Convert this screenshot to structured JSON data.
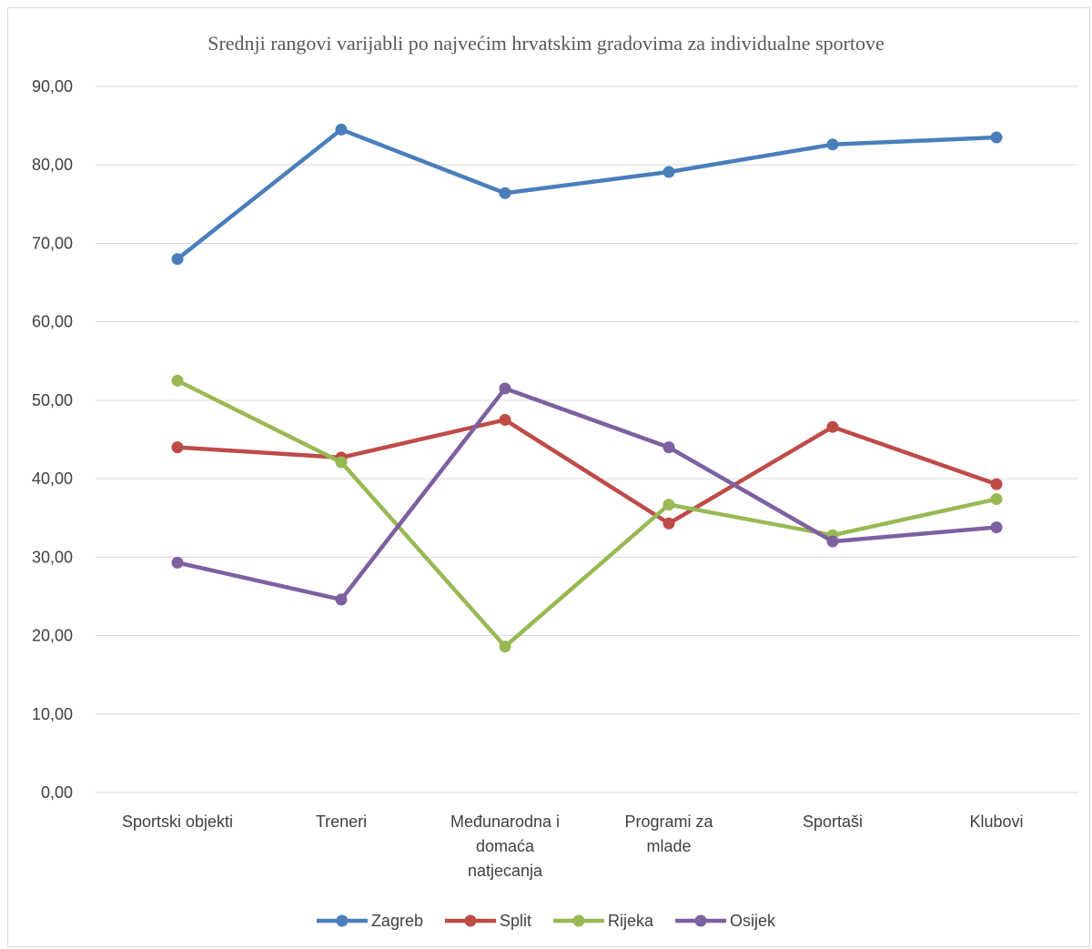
{
  "chart_data": {
    "type": "line",
    "title": "Srednji rangovi varijabli po najvećim hrvatskim gradovima za individualne sportove",
    "categories": [
      [
        "Sportski objekti"
      ],
      [
        "Treneri"
      ],
      [
        "Međunarodna i",
        "domaća",
        "natjecanja"
      ],
      [
        "Programi za",
        "mlade"
      ],
      [
        "Sportaši"
      ],
      [
        "Klubovi"
      ]
    ],
    "ylim": [
      0,
      90
    ],
    "yticks": [
      "0,00",
      "10,00",
      "20,00",
      "30,00",
      "40,00",
      "50,00",
      "60,00",
      "70,00",
      "80,00",
      "90,00"
    ],
    "grid": true,
    "legend_position": "bottom",
    "series": [
      {
        "name": "Zagreb",
        "color": "#4a7ebb",
        "values": [
          68.0,
          84.5,
          76.4,
          79.1,
          82.6,
          83.5
        ]
      },
      {
        "name": "Split",
        "color": "#be4b48",
        "values": [
          44.0,
          42.7,
          47.5,
          34.3,
          46.6,
          39.3
        ]
      },
      {
        "name": "Rijeka",
        "color": "#98b954",
        "values": [
          52.5,
          42.1,
          18.6,
          36.7,
          32.8,
          37.4
        ]
      },
      {
        "name": "Osijek",
        "color": "#7d60a0",
        "values": [
          29.3,
          24.6,
          51.5,
          44.0,
          32.0,
          33.8
        ]
      }
    ]
  }
}
